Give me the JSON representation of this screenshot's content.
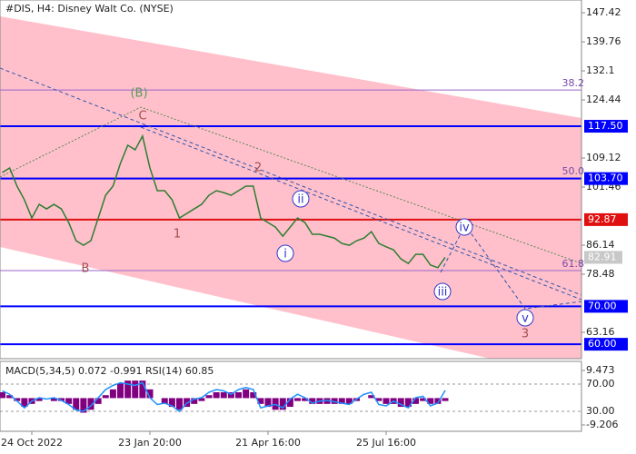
{
  "chart_data": [
    {
      "type": "line",
      "title": "#DIS, H4:  Disney Walt Co. (NYSE)",
      "categories": [
        null,
        null,
        null,
        null,
        "24 Oct 2022",
        null,
        null,
        null,
        null,
        null,
        null,
        null,
        null,
        null,
        null,
        null,
        null,
        null,
        null,
        null,
        "23 Jan 20:00",
        null,
        null,
        null,
        null,
        null,
        null,
        null,
        null,
        null,
        null,
        null,
        null,
        null,
        null,
        null,
        "21 Apr 16:00",
        null,
        null,
        null,
        null,
        null,
        null,
        null,
        null,
        null,
        null,
        null,
        null,
        null,
        null,
        null,
        "25 Jul 16:00",
        null,
        null,
        null,
        null,
        null,
        null,
        null,
        null
      ],
      "values": [
        105.3,
        106.5,
        101.7,
        98.1,
        93.3,
        96.9,
        95.7,
        96.9,
        95.7,
        92.1,
        87.3,
        86.1,
        87.3,
        93.3,
        99.3,
        101.7,
        107.7,
        112.5,
        111.3,
        114.9,
        106.5,
        100.5,
        100.5,
        98.1,
        93.3,
        94.5,
        95.7,
        96.9,
        99.3,
        100.5,
        100.0,
        99.3,
        100.5,
        101.7,
        101.7,
        93.3,
        92.1,
        90.9,
        88.5,
        90.9,
        93.3,
        92.1,
        89.0,
        89.0,
        88.5,
        88.0,
        86.6,
        86.1,
        87.3,
        88.0,
        89.7,
        86.6,
        85.7,
        84.9,
        82.5,
        81.3,
        83.7,
        83.7,
        80.9,
        80.2,
        82.91
      ],
      "color": "#2e7d32",
      "ylim": [
        56.2,
        150.8
      ],
      "yticks": [
        147.42,
        139.76,
        132.1,
        124.44,
        109.12,
        101.46,
        86.14,
        78.48,
        63.16
      ],
      "current_price": 82.91,
      "levels": [
        {
          "value": 117.5,
          "label": "117.50",
          "color": "#0000ff"
        },
        {
          "value": 103.7,
          "label": "103.70",
          "color": "#0000ff"
        },
        {
          "value": 92.87,
          "label": "92.87",
          "color": "#e01010"
        },
        {
          "value": 70,
          "label": "70.00",
          "color": "#0000ff"
        },
        {
          "value": 60,
          "label": "60.00",
          "color": "#0000ff"
        }
      ],
      "fib_levels": [
        {
          "value": 127.07,
          "label": "38.2"
        },
        {
          "value": 103.85,
          "label": "50.0"
        },
        {
          "value": 79.44,
          "label": "61.8"
        }
      ],
      "annotations": [
        "(B)",
        "C",
        "B",
        "1",
        "2",
        "i",
        "ii",
        "iii",
        "iv",
        "v",
        "3"
      ]
    },
    {
      "type": "macd",
      "title": "MACD(5,34,5) 0.072 -0.991 RSI(14) 60.85",
      "values": [
        2,
        1,
        -1,
        -3,
        -2,
        -1,
        0,
        -1,
        -1,
        -2,
        -4,
        -5,
        -4,
        -2,
        1,
        3,
        5,
        6,
        6,
        6,
        3,
        0,
        -2,
        -3,
        -4,
        -3,
        -2,
        -1,
        1,
        2,
        2,
        2,
        2,
        3,
        2,
        -2,
        -3,
        -4,
        -4,
        -3,
        -1,
        -1,
        -2,
        -2,
        -2,
        -2,
        -2,
        -2,
        -1,
        0,
        1,
        -1,
        -2,
        -2,
        -3,
        -3,
        -2,
        -1,
        -2,
        -2,
        -1
      ],
      "color": "#800080",
      "ylim": [
        -11.385,
        12.59
      ],
      "yticks": [
        9.473,
        -9.206
      ],
      "rsi": {
        "values": [
          60,
          55,
          45,
          35,
          45,
          50,
          48,
          50,
          46,
          40,
          32,
          30,
          38,
          50,
          62,
          68,
          72,
          70,
          68,
          72,
          50,
          40,
          42,
          38,
          30,
          42,
          48,
          50,
          58,
          62,
          60,
          55,
          62,
          65,
          62,
          35,
          38,
          40,
          35,
          48,
          55,
          50,
          42,
          45,
          46,
          44,
          42,
          40,
          48,
          55,
          58,
          40,
          38,
          45,
          40,
          35,
          50,
          52,
          38,
          42,
          60.85
        ],
        "color": "#1e90ff",
        "axis": "y2"
      },
      "y2lim": [
        0.67,
        103.3
      ],
      "y2ticks": [
        {
          "value": 70,
          "label": "70.00"
        },
        {
          "value": 30,
          "label": "30.00"
        }
      ]
    }
  ]
}
